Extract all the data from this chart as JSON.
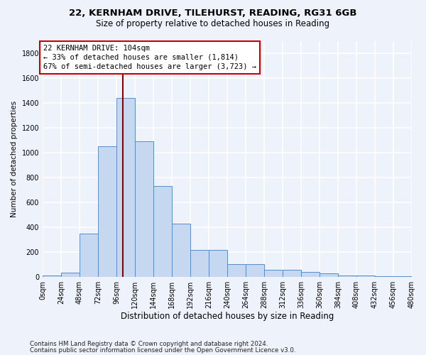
{
  "title_line1": "22, KERNHAM DRIVE, TILEHURST, READING, RG31 6GB",
  "title_line2": "Size of property relative to detached houses in Reading",
  "xlabel": "Distribution of detached houses by size in Reading",
  "ylabel": "Number of detached properties",
  "bin_edges": [
    0,
    24,
    48,
    72,
    96,
    120,
    144,
    168,
    192,
    216,
    240,
    264,
    288,
    312,
    336,
    360,
    384,
    408,
    432,
    456,
    480
  ],
  "bar_heights": [
    10,
    35,
    350,
    1050,
    1440,
    1090,
    730,
    430,
    215,
    215,
    100,
    100,
    55,
    55,
    40,
    30,
    10,
    10,
    5,
    5
  ],
  "bar_color": "#c5d8f0",
  "bar_edge_color": "#5b8cc8",
  "vline_x": 104,
  "vline_color": "#8b0000",
  "annotation_line1": "22 KERNHAM DRIVE: 104sqm",
  "annotation_line2": "← 33% of detached houses are smaller (1,814)",
  "annotation_line3": "67% of semi-detached houses are larger (3,723) →",
  "annotation_box_facecolor": "#ffffff",
  "annotation_box_edgecolor": "#cc0000",
  "footer_line1": "Contains HM Land Registry data © Crown copyright and database right 2024.",
  "footer_line2": "Contains public sector information licensed under the Open Government Licence v3.0.",
  "bg_color": "#eef2fa",
  "grid_color": "#ffffff",
  "ylim": [
    0,
    1900
  ],
  "yticks": [
    0,
    200,
    400,
    600,
    800,
    1000,
    1200,
    1400,
    1600,
    1800
  ],
  "title1_fontsize": 9.5,
  "title2_fontsize": 8.5,
  "ylabel_fontsize": 7.5,
  "xlabel_fontsize": 8.5,
  "tick_fontsize": 7,
  "annot_fontsize": 7.5,
  "footer_fontsize": 6.2
}
